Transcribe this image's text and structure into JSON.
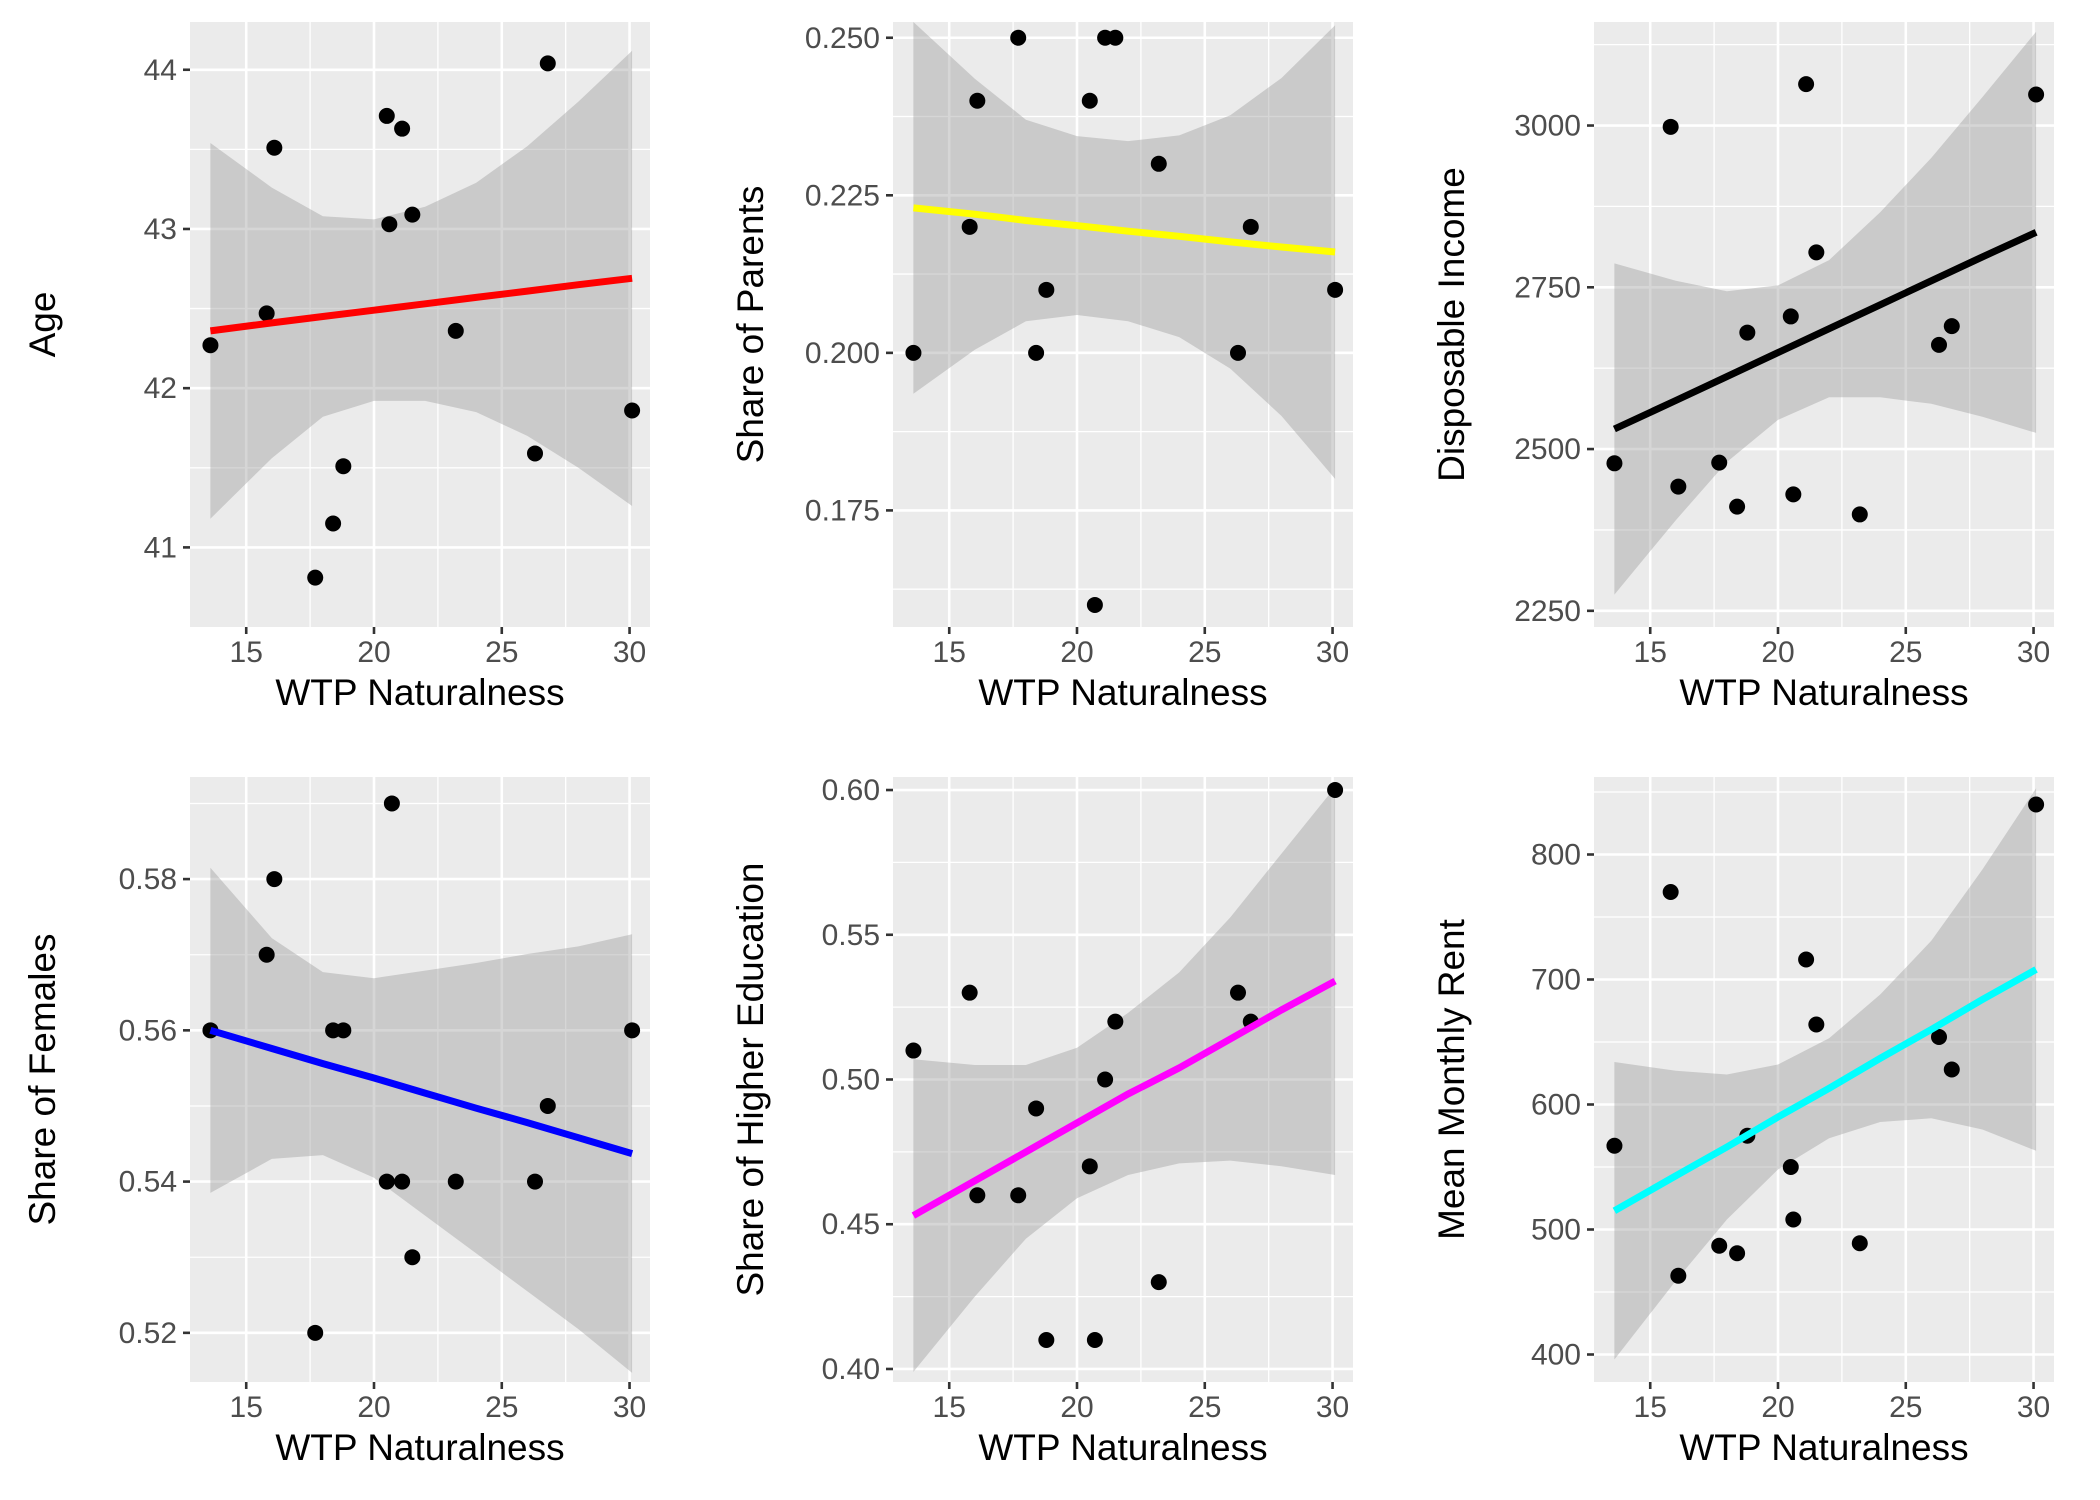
{
  "chart_data": [
    {
      "type": "scatter",
      "xlabel": "WTP Naturalness",
      "ylabel": "Age",
      "xlim": [
        12.8,
        30.8
      ],
      "ylim": [
        40.5,
        44.3
      ],
      "xticks": [
        15,
        20,
        25,
        30
      ],
      "yticks": [
        41,
        42,
        43,
        44
      ],
      "points": [
        {
          "x": 13.6,
          "y": 42.27
        },
        {
          "x": 15.8,
          "y": 42.47
        },
        {
          "x": 16.1,
          "y": 43.51
        },
        {
          "x": 17.7,
          "y": 40.81
        },
        {
          "x": 18.4,
          "y": 41.15
        },
        {
          "x": 18.8,
          "y": 41.51
        },
        {
          "x": 20.5,
          "y": 43.71
        },
        {
          "x": 20.6,
          "y": 43.03
        },
        {
          "x": 21.1,
          "y": 43.63
        },
        {
          "x": 21.5,
          "y": 43.09
        },
        {
          "x": 23.2,
          "y": 42.36
        },
        {
          "x": 26.3,
          "y": 41.59
        },
        {
          "x": 26.8,
          "y": 44.04
        },
        {
          "x": 30.1,
          "y": 41.86
        }
      ],
      "fit": {
        "color": "#ff0000",
        "x": [
          13.6,
          16,
          18,
          20,
          22,
          24,
          26,
          28,
          30.1
        ],
        "y": [
          42.36,
          42.41,
          42.45,
          42.49,
          42.53,
          42.57,
          42.61,
          42.65,
          42.69
        ],
        "ci_lower": [
          41.18,
          41.56,
          41.82,
          41.92,
          41.92,
          41.85,
          41.7,
          41.5,
          41.26
        ],
        "ci_upper": [
          43.54,
          43.26,
          43.08,
          43.06,
          43.14,
          43.29,
          43.52,
          43.8,
          44.12
        ]
      }
    },
    {
      "type": "scatter",
      "xlabel": "WTP Naturalness",
      "ylabel": "Share of Parents",
      "xlim": [
        12.8,
        30.8
      ],
      "ylim": [
        0.1565,
        0.2525
      ],
      "xticks": [
        15,
        20,
        25,
        30
      ],
      "yticks": [
        0.175,
        0.2,
        0.225,
        0.25
      ],
      "ytick_labels": [
        "0.175",
        "0.200",
        "0.225",
        "0.250"
      ],
      "points": [
        {
          "x": 13.6,
          "y": 0.2
        },
        {
          "x": 15.8,
          "y": 0.22
        },
        {
          "x": 16.1,
          "y": 0.24
        },
        {
          "x": 17.7,
          "y": 0.25
        },
        {
          "x": 18.4,
          "y": 0.2
        },
        {
          "x": 18.8,
          "y": 0.21
        },
        {
          "x": 20.5,
          "y": 0.24
        },
        {
          "x": 20.7,
          "y": 0.16
        },
        {
          "x": 21.1,
          "y": 0.25
        },
        {
          "x": 21.5,
          "y": 0.25
        },
        {
          "x": 23.2,
          "y": 0.23
        },
        {
          "x": 26.3,
          "y": 0.2
        },
        {
          "x": 26.8,
          "y": 0.22
        },
        {
          "x": 30.1,
          "y": 0.21
        }
      ],
      "fit": {
        "color": "#ffff00",
        "x": [
          13.6,
          16,
          18,
          20,
          22,
          24,
          26,
          28,
          30.1
        ],
        "y": [
          0.223,
          0.222,
          0.221,
          0.2202,
          0.2193,
          0.2185,
          0.2176,
          0.2168,
          0.216
        ],
        "ci_lower": [
          0.1935,
          0.2005,
          0.205,
          0.206,
          0.205,
          0.2025,
          0.1975,
          0.19,
          0.18
        ],
        "ci_upper": [
          0.2525,
          0.2435,
          0.237,
          0.2344,
          0.2336,
          0.2345,
          0.2377,
          0.2436,
          0.252
        ]
      }
    },
    {
      "type": "scatter",
      "xlabel": "WTP Naturalness",
      "ylabel": "Disposable Income",
      "xlim": [
        12.8,
        30.8
      ],
      "ylim": [
        2225,
        3160
      ],
      "xticks": [
        15,
        20,
        25,
        30
      ],
      "yticks": [
        2250,
        2500,
        2750,
        3000
      ],
      "points": [
        {
          "x": 13.6,
          "y": 2478
        },
        {
          "x": 15.8,
          "y": 2998
        },
        {
          "x": 16.1,
          "y": 2442
        },
        {
          "x": 17.7,
          "y": 2479
        },
        {
          "x": 18.4,
          "y": 2411
        },
        {
          "x": 18.8,
          "y": 2680
        },
        {
          "x": 20.5,
          "y": 2705
        },
        {
          "x": 20.6,
          "y": 2430
        },
        {
          "x": 21.1,
          "y": 3064
        },
        {
          "x": 21.5,
          "y": 2804
        },
        {
          "x": 23.2,
          "y": 2399
        },
        {
          "x": 26.3,
          "y": 2661
        },
        {
          "x": 26.8,
          "y": 2690
        },
        {
          "x": 30.1,
          "y": 3048
        }
      ],
      "fit": {
        "color": "#000000",
        "x": [
          13.6,
          16,
          18,
          20,
          22,
          24,
          26,
          28,
          30.1
        ],
        "y": [
          2531,
          2575,
          2612,
          2649,
          2686,
          2723,
          2760,
          2797,
          2835
        ],
        "ci_lower": [
          2275,
          2390,
          2480,
          2545,
          2580,
          2580,
          2570,
          2550,
          2525
        ],
        "ci_upper": [
          2787,
          2760,
          2744,
          2753,
          2792,
          2866,
          2950,
          3044,
          3145
        ]
      }
    },
    {
      "type": "scatter",
      "xlabel": "WTP Naturalness",
      "ylabel": "Share of Females",
      "xlim": [
        12.8,
        30.8
      ],
      "ylim": [
        0.5135,
        0.5935
      ],
      "xticks": [
        15,
        20,
        25,
        30
      ],
      "yticks": [
        0.52,
        0.54,
        0.56,
        0.58
      ],
      "ytick_labels": [
        "0.52",
        "0.54",
        "0.56",
        "0.58"
      ],
      "points": [
        {
          "x": 13.6,
          "y": 0.56
        },
        {
          "x": 15.8,
          "y": 0.57
        },
        {
          "x": 16.1,
          "y": 0.58
        },
        {
          "x": 17.7,
          "y": 0.52
        },
        {
          "x": 18.4,
          "y": 0.56
        },
        {
          "x": 18.8,
          "y": 0.56
        },
        {
          "x": 20.5,
          "y": 0.54
        },
        {
          "x": 20.7,
          "y": 0.59
        },
        {
          "x": 21.1,
          "y": 0.54
        },
        {
          "x": 21.5,
          "y": 0.53
        },
        {
          "x": 23.2,
          "y": 0.54
        },
        {
          "x": 26.3,
          "y": 0.54
        },
        {
          "x": 26.8,
          "y": 0.55
        },
        {
          "x": 30.1,
          "y": 0.56
        }
      ],
      "fit": {
        "color": "#0000ff",
        "x": [
          13.6,
          16,
          18,
          20,
          22,
          24,
          26,
          28,
          30.1
        ],
        "y": [
          0.56,
          0.5576,
          0.5556,
          0.5537,
          0.5517,
          0.5497,
          0.5478,
          0.5458,
          0.5437
        ],
        "ci_lower": [
          0.5385,
          0.543,
          0.5435,
          0.5405,
          0.5355,
          0.5305,
          0.5255,
          0.5205,
          0.5147
        ],
        "ci_upper": [
          0.5815,
          0.5722,
          0.5677,
          0.5669,
          0.5679,
          0.5689,
          0.5701,
          0.5711,
          0.5727
        ]
      }
    },
    {
      "type": "scatter",
      "xlabel": "WTP Naturalness",
      "ylabel": "Share of Higher Education",
      "xlim": [
        12.8,
        30.8
      ],
      "ylim": [
        0.3955,
        0.6045
      ],
      "xticks": [
        15,
        20,
        25,
        30
      ],
      "yticks": [
        0.4,
        0.45,
        0.5,
        0.55,
        0.6
      ],
      "ytick_labels": [
        "0.40",
        "0.45",
        "0.50",
        "0.55",
        "0.60"
      ],
      "points": [
        {
          "x": 13.6,
          "y": 0.51
        },
        {
          "x": 15.8,
          "y": 0.53
        },
        {
          "x": 16.1,
          "y": 0.46
        },
        {
          "x": 17.7,
          "y": 0.46
        },
        {
          "x": 18.4,
          "y": 0.49
        },
        {
          "x": 18.8,
          "y": 0.41
        },
        {
          "x": 20.5,
          "y": 0.47
        },
        {
          "x": 20.7,
          "y": 0.41
        },
        {
          "x": 21.1,
          "y": 0.5
        },
        {
          "x": 21.5,
          "y": 0.52
        },
        {
          "x": 23.2,
          "y": 0.43
        },
        {
          "x": 26.3,
          "y": 0.53
        },
        {
          "x": 26.8,
          "y": 0.52
        },
        {
          "x": 30.1,
          "y": 0.6
        }
      ],
      "fit": {
        "color": "#ff00ff",
        "x": [
          13.6,
          16,
          18,
          20,
          22,
          24,
          26,
          28,
          30.1
        ],
        "y": [
          0.453,
          0.465,
          0.475,
          0.485,
          0.495,
          0.504,
          0.514,
          0.524,
          0.534
        ],
        "ci_lower": [
          0.399,
          0.425,
          0.445,
          0.459,
          0.467,
          0.471,
          0.472,
          0.47,
          0.467
        ],
        "ci_upper": [
          0.507,
          0.505,
          0.505,
          0.511,
          0.523,
          0.537,
          0.556,
          0.578,
          0.601
        ]
      }
    },
    {
      "type": "scatter",
      "xlabel": "WTP Naturalness",
      "ylabel": "Mean Monthly Rent",
      "xlim": [
        12.8,
        30.8
      ],
      "ylim": [
        378,
        862
      ],
      "xticks": [
        15,
        20,
        25,
        30
      ],
      "yticks": [
        400,
        500,
        600,
        700,
        800
      ],
      "points": [
        {
          "x": 13.6,
          "y": 567
        },
        {
          "x": 15.8,
          "y": 770
        },
        {
          "x": 16.1,
          "y": 463
        },
        {
          "x": 17.7,
          "y": 487
        },
        {
          "x": 18.4,
          "y": 481
        },
        {
          "x": 18.8,
          "y": 575
        },
        {
          "x": 20.5,
          "y": 550
        },
        {
          "x": 20.6,
          "y": 508
        },
        {
          "x": 21.1,
          "y": 716
        },
        {
          "x": 21.5,
          "y": 664
        },
        {
          "x": 23.2,
          "y": 489
        },
        {
          "x": 26.3,
          "y": 654
        },
        {
          "x": 26.8,
          "y": 628
        },
        {
          "x": 30.1,
          "y": 840
        }
      ],
      "fit": {
        "color": "#00ffff",
        "x": [
          13.6,
          16,
          18,
          20,
          22,
          24,
          26,
          28,
          30.1
        ],
        "y": [
          515,
          543,
          566,
          590,
          613,
          637,
          660,
          684,
          708
        ],
        "ci_lower": [
          396,
          459,
          508,
          548,
          573,
          586,
          589,
          580,
          563
        ],
        "ci_upper": [
          634,
          627,
          624,
          632,
          653,
          688,
          731,
          788,
          853
        ]
      }
    }
  ]
}
